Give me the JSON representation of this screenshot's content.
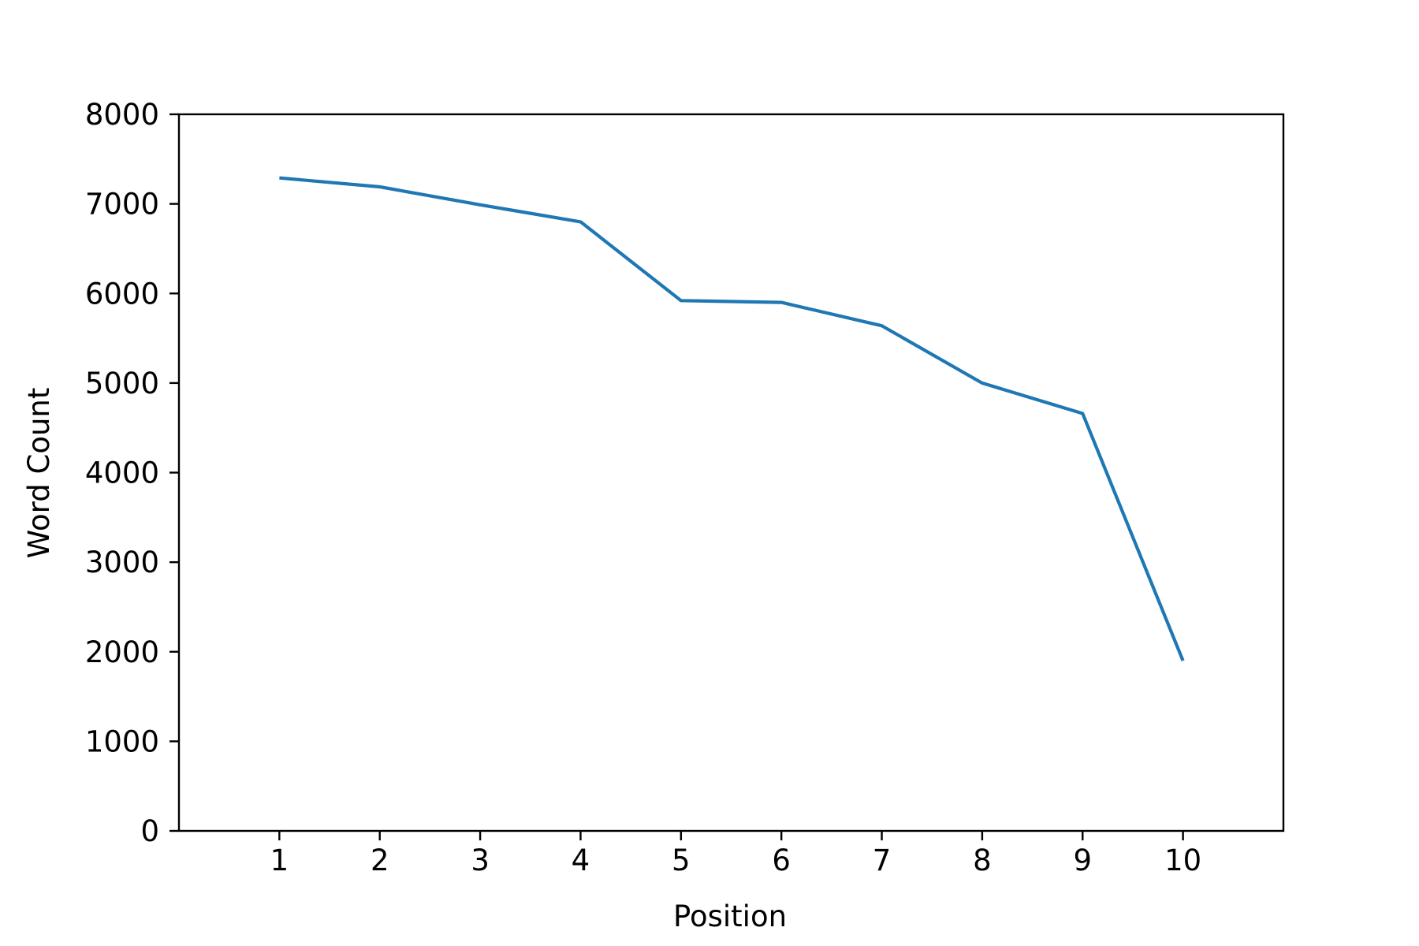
{
  "chart_data": {
    "type": "line",
    "title": "",
    "xlabel": "Position",
    "ylabel": "Word Count",
    "x": [
      1,
      2,
      3,
      4,
      5,
      6,
      7,
      8,
      9,
      10
    ],
    "xlim": [
      0,
      11
    ],
    "ylim": [
      0,
      8000
    ],
    "xticks": [
      1,
      2,
      3,
      4,
      5,
      6,
      7,
      8,
      9,
      10
    ],
    "yticks": [
      0,
      1000,
      2000,
      3000,
      4000,
      5000,
      6000,
      7000,
      8000
    ],
    "grid": false,
    "legend": "none",
    "series": [
      {
        "values": [
          7290,
          7190,
          6990,
          6800,
          5920,
          5900,
          5640,
          5000,
          4660,
          1900
        ],
        "color": "#1f77b4"
      }
    ]
  }
}
